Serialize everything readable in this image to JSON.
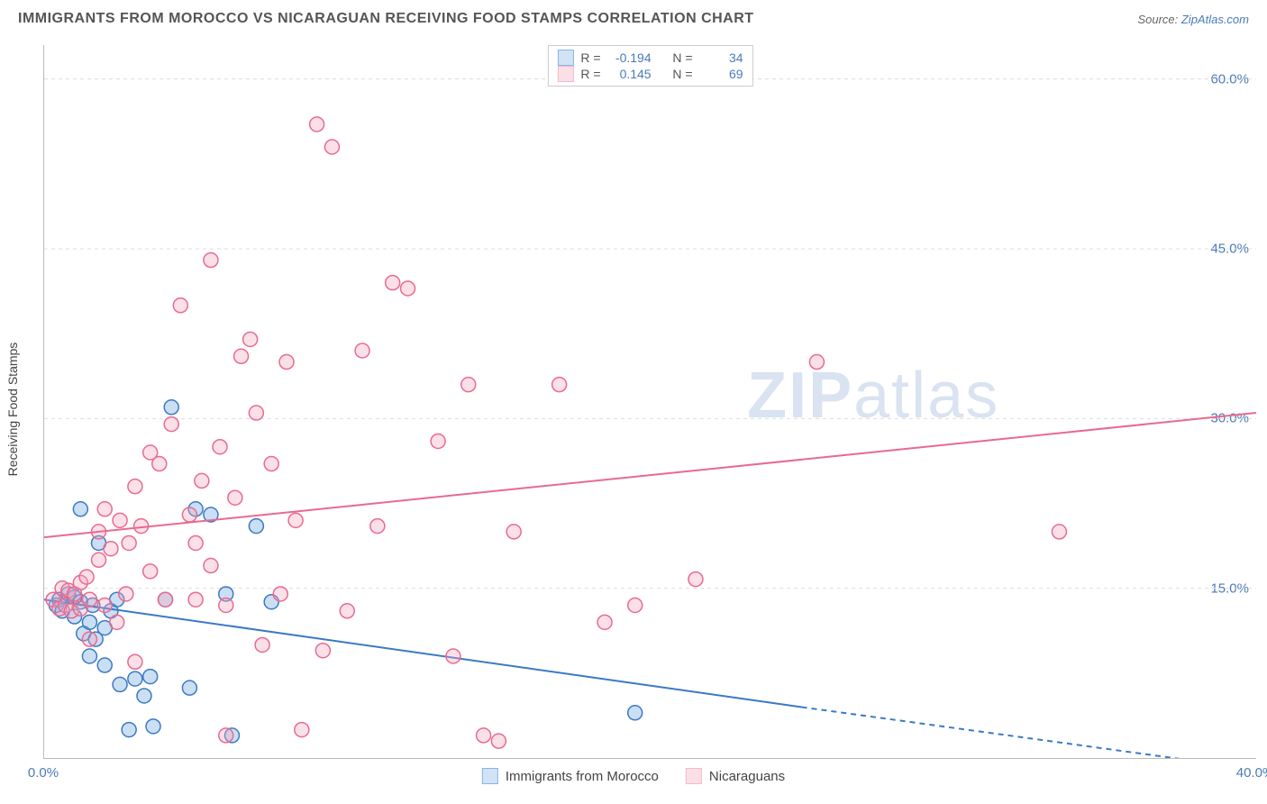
{
  "header": {
    "title": "IMMIGRANTS FROM MOROCCO VS NICARAGUAN RECEIVING FOOD STAMPS CORRELATION CHART",
    "source_prefix": "Source: ",
    "source_link": "ZipAtlas.com"
  },
  "chart": {
    "type": "scatter",
    "ylabel": "Receiving Food Stamps",
    "xlim": [
      0,
      40
    ],
    "ylim": [
      0,
      63
    ],
    "background_color": "#ffffff",
    "grid_color": "#dddddd",
    "axis_color": "#bbbbbb",
    "tick_color": "#4a7bb8",
    "tick_fontsize": 15,
    "marker_radius": 8,
    "marker_fill_opacity": 0.35,
    "marker_stroke_width": 1.5,
    "trend_line_width": 2,
    "x_ticks": [
      {
        "v": 0,
        "label": "0.0%"
      },
      {
        "v": 40,
        "label": "40.0%"
      }
    ],
    "y_ticks": [
      {
        "v": 15,
        "label": "15.0%"
      },
      {
        "v": 30,
        "label": "30.0%"
      },
      {
        "v": 45,
        "label": "45.0%"
      },
      {
        "v": 60,
        "label": "60.0%"
      }
    ],
    "watermark": "ZIPatlas",
    "series": [
      {
        "id": "morocco",
        "label": "Immigrants from Morocco",
        "color": "#6aa3e0",
        "stroke": "#3b7ac4",
        "r_value": "-0.194",
        "n_value": "34",
        "trend": {
          "x1": 0,
          "y1": 14,
          "x2": 25,
          "y2": 4.5,
          "dash_x2": 40,
          "dash_y2": -1
        },
        "points": [
          [
            0.4,
            13.5
          ],
          [
            0.5,
            14
          ],
          [
            0.6,
            13
          ],
          [
            0.8,
            14.5
          ],
          [
            1.0,
            12.5
          ],
          [
            1.0,
            14.2
          ],
          [
            1.2,
            22
          ],
          [
            1.2,
            13.8
          ],
          [
            1.3,
            11
          ],
          [
            1.5,
            12
          ],
          [
            1.5,
            9
          ],
          [
            1.6,
            13.5
          ],
          [
            1.7,
            10.5
          ],
          [
            1.8,
            19
          ],
          [
            2.0,
            11.5
          ],
          [
            2.0,
            8.2
          ],
          [
            2.2,
            13
          ],
          [
            2.4,
            14
          ],
          [
            2.5,
            6.5
          ],
          [
            2.8,
            2.5
          ],
          [
            3.0,
            7
          ],
          [
            3.3,
            5.5
          ],
          [
            3.5,
            7.2
          ],
          [
            3.6,
            2.8
          ],
          [
            4.0,
            14
          ],
          [
            4.2,
            31
          ],
          [
            4.8,
            6.2
          ],
          [
            5.0,
            22
          ],
          [
            5.5,
            21.5
          ],
          [
            6.0,
            14.5
          ],
          [
            6.2,
            2.0
          ],
          [
            7.0,
            20.5
          ],
          [
            7.5,
            13.8
          ],
          [
            19.5,
            4.0
          ]
        ]
      },
      {
        "id": "nicaraguan",
        "label": "Nicaraguans",
        "color": "#f5a7be",
        "stroke": "#e86a8f",
        "r_value": "0.145",
        "n_value": "69",
        "trend": {
          "x1": 0,
          "y1": 19.5,
          "x2": 40,
          "y2": 30.5
        },
        "points": [
          [
            0.3,
            14
          ],
          [
            0.5,
            13.2
          ],
          [
            0.6,
            15
          ],
          [
            0.7,
            13.5
          ],
          [
            0.8,
            14.8
          ],
          [
            0.9,
            13
          ],
          [
            1.0,
            14.5
          ],
          [
            1.2,
            15.5
          ],
          [
            1.2,
            13.2
          ],
          [
            1.4,
            16
          ],
          [
            1.5,
            10.5
          ],
          [
            1.5,
            14
          ],
          [
            1.8,
            20
          ],
          [
            1.8,
            17.5
          ],
          [
            2.0,
            13.5
          ],
          [
            2.0,
            22
          ],
          [
            2.2,
            18.5
          ],
          [
            2.4,
            12
          ],
          [
            2.5,
            21
          ],
          [
            2.7,
            14.5
          ],
          [
            2.8,
            19
          ],
          [
            3.0,
            24
          ],
          [
            3.0,
            8.5
          ],
          [
            3.2,
            20.5
          ],
          [
            3.5,
            27
          ],
          [
            3.5,
            16.5
          ],
          [
            3.8,
            26
          ],
          [
            4.0,
            14
          ],
          [
            4.2,
            29.5
          ],
          [
            4.5,
            40
          ],
          [
            4.8,
            21.5
          ],
          [
            5.0,
            19
          ],
          [
            5.0,
            14
          ],
          [
            5.2,
            24.5
          ],
          [
            5.5,
            44
          ],
          [
            5.5,
            17
          ],
          [
            5.8,
            27.5
          ],
          [
            6.0,
            13.5
          ],
          [
            6.0,
            2.0
          ],
          [
            6.3,
            23
          ],
          [
            6.5,
            35.5
          ],
          [
            6.8,
            37
          ],
          [
            7.0,
            30.5
          ],
          [
            7.2,
            10
          ],
          [
            7.5,
            26
          ],
          [
            7.8,
            14.5
          ],
          [
            8.0,
            35
          ],
          [
            8.3,
            21
          ],
          [
            8.5,
            2.5
          ],
          [
            9.0,
            56
          ],
          [
            9.2,
            9.5
          ],
          [
            9.5,
            54
          ],
          [
            10.0,
            13
          ],
          [
            10.5,
            36
          ],
          [
            11.0,
            20.5
          ],
          [
            11.5,
            42
          ],
          [
            12.0,
            41.5
          ],
          [
            13.0,
            28
          ],
          [
            13.5,
            9
          ],
          [
            14.0,
            33
          ],
          [
            14.5,
            2.0
          ],
          [
            15.5,
            20
          ],
          [
            17.0,
            33
          ],
          [
            18.5,
            12
          ],
          [
            19.5,
            13.5
          ],
          [
            21.5,
            15.8
          ],
          [
            25.5,
            35
          ],
          [
            33.5,
            20
          ],
          [
            15.0,
            1.5
          ]
        ]
      }
    ],
    "legend_top": {
      "r_label": "R =",
      "n_label": "N ="
    }
  }
}
